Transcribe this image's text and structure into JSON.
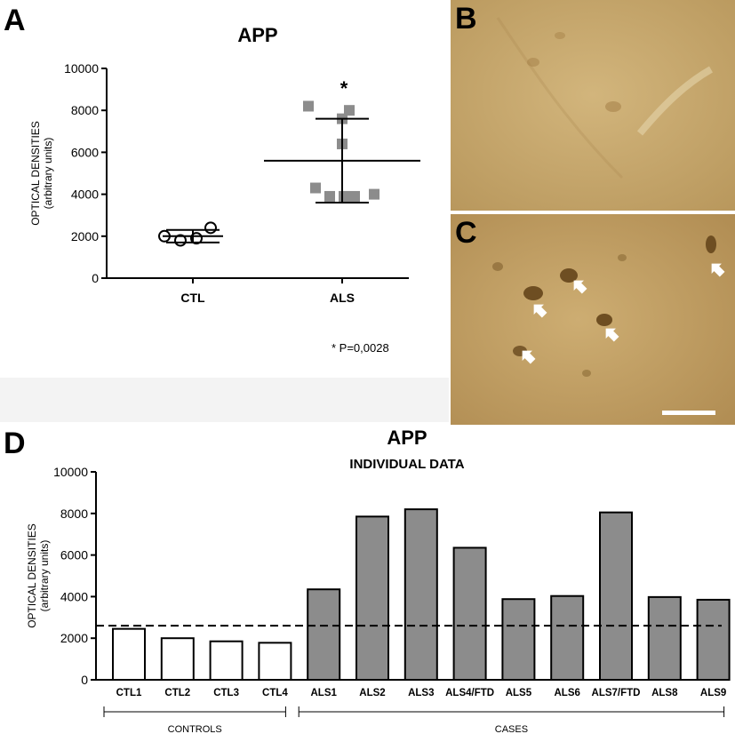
{
  "panel_labels": {
    "a": "A",
    "b": "B",
    "c": "C",
    "d": "D"
  },
  "colors": {
    "als_fill": "#8c8c8c",
    "ctl_fill": "#ffffff",
    "arrow": "#ffffff",
    "tissue_light": "#c9ab6f",
    "tissue_dark": "#7a5a28"
  },
  "chart_data": [
    {
      "panel": "A",
      "type": "scatter",
      "title": "APP",
      "ylabel": "OPTICAL DENSITIES",
      "ylabel_sub": "(arbitrary units)",
      "ylim": [
        0,
        10000
      ],
      "yticks": [
        "0",
        "2000",
        "4000",
        "6000",
        "8000",
        "10000"
      ],
      "categories": [
        "CTL",
        "ALS"
      ],
      "series": [
        {
          "category": "CTL",
          "marker": "open-circle",
          "values": [
            2000,
            1800,
            1900,
            2400
          ],
          "mean": 2000,
          "sd_low": 1700,
          "sd_high": 2300
        },
        {
          "category": "ALS",
          "marker": "grey-square",
          "values": [
            8200,
            8000,
            7600,
            6400,
            4300,
            3900,
            3900,
            3900,
            4000
          ],
          "mean": 5600,
          "sd_low": 3600,
          "sd_high": 7600
        }
      ],
      "significance_mark": "*",
      "annotation": "* P=0,0028"
    },
    {
      "panel": "D",
      "type": "bar",
      "title": "APP",
      "subtitle": "INDIVIDUAL DATA",
      "ylabel": "OPTICAL DENSITIES",
      "ylabel_sub": "(arbitrary units)",
      "ylim": [
        0,
        10000
      ],
      "yticks": [
        "0",
        "2000",
        "4000",
        "6000",
        "8000",
        "10000"
      ],
      "categories": [
        "CTL1",
        "CTL2",
        "CTL3",
        "CTL4",
        "ALS1",
        "ALS2",
        "ALS3",
        "ALS4/FTD",
        "ALS5",
        "ALS6",
        "ALS7/FTD",
        "ALS8",
        "ALS9"
      ],
      "values": [
        2450,
        2000,
        1850,
        1780,
        4350,
        7850,
        8200,
        6350,
        3880,
        4030,
        8050,
        3980,
        3850
      ],
      "reference_line": 2600,
      "groups": [
        {
          "label": "CONTROLS",
          "from": "CTL1",
          "to": "CTL4"
        },
        {
          "label": "CASES",
          "from": "ALS1",
          "to": "ALS9"
        }
      ]
    }
  ]
}
